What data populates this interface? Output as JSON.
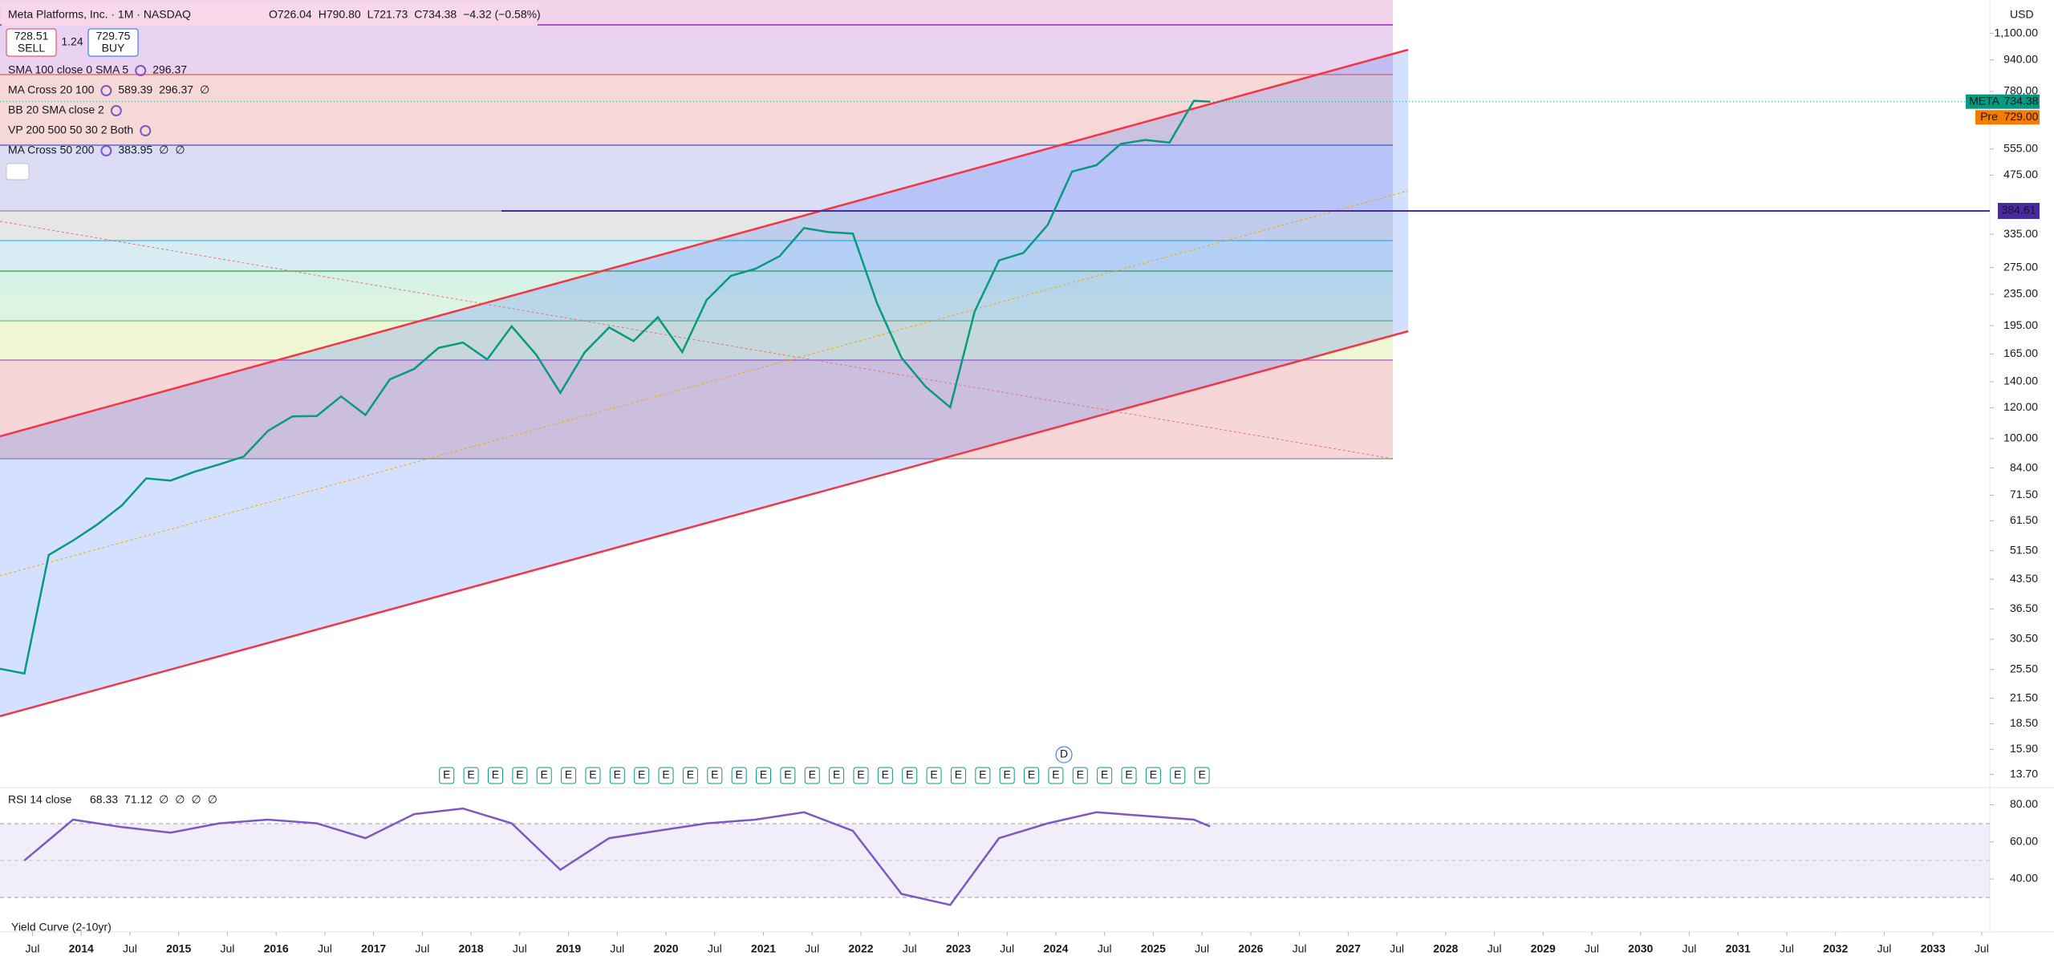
{
  "chart_data": [
    {
      "type": "line",
      "title": "Meta Platforms, Inc. · 1M · NASDAQ",
      "ohlc": [
        "O726.04",
        "H790.80",
        "L721.73",
        "C734.38",
        "−4.32 (−0.58%)"
      ],
      "sell": {
        "price": "728.51",
        "label": "SELL"
      },
      "spread": "1.24",
      "buy": {
        "price": "729.75",
        "label": "BUY"
      },
      "indicators": [
        {
          "name": "SMA 100 close 0 SMA 5",
          "values": [
            "296.37"
          ],
          "colors": [
            "#ff9800"
          ]
        },
        {
          "name": "MA Cross 20 100",
          "values": [
            "589.39",
            "296.37",
            "∅"
          ],
          "colors": [
            "#5b3fb5",
            "#ff9800",
            "#131722"
          ]
        },
        {
          "name": "BB 20 SMA close 2",
          "values": [],
          "colors": []
        },
        {
          "name": "VP 200 500 50 30 2 Both",
          "values": [],
          "colors": []
        },
        {
          "name": "MA Cross 50 200",
          "values": [
            "383.95",
            "∅",
            "∅"
          ],
          "colors": [
            "#c2185b",
            "#131722",
            "#131722"
          ]
        }
      ],
      "currency": "USD",
      "x": [
        "2013-03",
        "2013-06",
        "2013-09",
        "2013-12",
        "2014-03",
        "2014-06",
        "2014-09",
        "2014-12",
        "2015-03",
        "2015-06",
        "2015-09",
        "2015-12",
        "2016-03",
        "2016-06",
        "2016-09",
        "2016-12",
        "2017-03",
        "2017-06",
        "2017-09",
        "2017-12",
        "2018-03",
        "2018-06",
        "2018-09",
        "2018-12",
        "2019-03",
        "2019-06",
        "2019-09",
        "2019-12",
        "2020-03",
        "2020-06",
        "2020-09",
        "2020-12",
        "2021-03",
        "2021-06",
        "2021-09",
        "2021-12",
        "2022-03",
        "2022-06",
        "2022-09",
        "2022-12",
        "2023-03",
        "2023-06",
        "2023-09",
        "2023-12",
        "2024-03",
        "2024-06",
        "2024-09",
        "2024-12",
        "2025-03",
        "2025-06",
        "2025-08"
      ],
      "values": [
        25.6,
        24.9,
        50.2,
        54.7,
        60.2,
        67.3,
        79,
        78,
        82.2,
        85.8,
        89.9,
        104.7,
        114,
        114.3,
        128.3,
        115,
        142,
        151,
        171,
        176.5,
        159.8,
        194.3,
        164.5,
        131,
        166.7,
        193,
        178,
        205,
        166.8,
        227,
        262,
        273,
        294.5,
        347.7,
        339.4,
        336.4,
        222.4,
        161.3,
        135.7,
        120.3,
        212,
        287,
        300,
        354,
        485.6,
        504,
        572,
        585.5,
        576.4,
        738,
        734.38
      ],
      "color": "#089981",
      "log_scale": true,
      "grid": false,
      "xlim": [
        "2013-03",
        "2033-08"
      ],
      "xticks": [
        {
          "value": "2013-07",
          "label": "Jul"
        },
        {
          "value": "2014-01",
          "label": "2014"
        },
        {
          "value": "2014-07",
          "label": "Jul"
        },
        {
          "value": "2015-01",
          "label": "2015"
        },
        {
          "value": "2015-07",
          "label": "Jul"
        },
        {
          "value": "2016-01",
          "label": "2016"
        },
        {
          "value": "2016-07",
          "label": "Jul"
        },
        {
          "value": "2017-01",
          "label": "2017"
        },
        {
          "value": "2017-07",
          "label": "Jul"
        },
        {
          "value": "2018-01",
          "label": "2018"
        },
        {
          "value": "2018-07",
          "label": "Jul"
        },
        {
          "value": "2019-01",
          "label": "2019"
        },
        {
          "value": "2019-07",
          "label": "Jul"
        },
        {
          "value": "2020-01",
          "label": "2020"
        },
        {
          "value": "2020-07",
          "label": "Jul"
        },
        {
          "value": "2021-01",
          "label": "2021"
        },
        {
          "value": "2021-07",
          "label": "Jul"
        },
        {
          "value": "2022-01",
          "label": "2022"
        },
        {
          "value": "2022-07",
          "label": "Jul"
        },
        {
          "value": "2023-01",
          "label": "2023"
        },
        {
          "value": "2023-07",
          "label": "Jul"
        },
        {
          "value": "2024-01",
          "label": "2024"
        },
        {
          "value": "2024-07",
          "label": "Jul"
        },
        {
          "value": "2025-01",
          "label": "2025"
        },
        {
          "value": "2025-07",
          "label": "Jul"
        },
        {
          "value": "2026-01",
          "label": "2026"
        },
        {
          "value": "2026-07",
          "label": "Jul"
        },
        {
          "value": "2027-01",
          "label": "2027"
        },
        {
          "value": "2027-07",
          "label": "Jul"
        },
        {
          "value": "2028-01",
          "label": "2028"
        },
        {
          "value": "2028-07",
          "label": "Jul"
        },
        {
          "value": "2029-01",
          "label": "2029"
        },
        {
          "value": "2029-07",
          "label": "Jul"
        },
        {
          "value": "2030-01",
          "label": "2030"
        },
        {
          "value": "2030-07",
          "label": "Jul"
        },
        {
          "value": "2031-01",
          "label": "2031"
        },
        {
          "value": "2031-07",
          "label": "Jul"
        },
        {
          "value": "2032-01",
          "label": "2032"
        },
        {
          "value": "2032-07",
          "label": "Jul"
        },
        {
          "value": "2033-01",
          "label": "2033"
        },
        {
          "value": "2033-07",
          "label": "Jul"
        }
      ],
      "ylim": [
        12.8,
        1340
      ],
      "yticks": [
        {
          "value": 13.7,
          "label": "13.70"
        },
        {
          "value": 15.9,
          "label": "15.90"
        },
        {
          "value": 18.5,
          "label": "18.50"
        },
        {
          "value": 21.5,
          "label": "21.50"
        },
        {
          "value": 25.5,
          "label": "25.50"
        },
        {
          "value": 30.5,
          "label": "30.50"
        },
        {
          "value": 36.5,
          "label": "36.50"
        },
        {
          "value": 43.5,
          "label": "43.50"
        },
        {
          "value": 51.5,
          "label": "51.50"
        },
        {
          "value": 61.5,
          "label": "61.50"
        },
        {
          "value": 71.5,
          "label": "71.50"
        },
        {
          "value": 84,
          "label": "84.00"
        },
        {
          "value": 100,
          "label": "100.00"
        },
        {
          "value": 120,
          "label": "120.00"
        },
        {
          "value": 140,
          "label": "140.00"
        },
        {
          "value": 165,
          "label": "165.00"
        },
        {
          "value": 195,
          "label": "195.00"
        },
        {
          "value": 235,
          "label": "235.00"
        },
        {
          "value": 275,
          "label": "275.00"
        },
        {
          "value": 335,
          "label": "335.00"
        },
        {
          "value": 475,
          "label": "475.00"
        },
        {
          "value": 555,
          "label": "555.00"
        },
        {
          "value": 780,
          "label": "780.00"
        },
        {
          "value": 940,
          "label": "940.00"
        },
        {
          "value": 1100,
          "label": "1,100.00"
        }
      ],
      "last_price": {
        "symbol": "META",
        "value": 734.38,
        "color": "#089981"
      },
      "premarket": {
        "label": "Pre",
        "value": 729,
        "value_label": "729.00",
        "color": "#f57c00"
      },
      "hline": {
        "value": 384.61,
        "color": "#4a2a9e"
      },
      "earnings": {
        "label": "E",
        "color": "#089981",
        "x": [
          "2017-10",
          "2018-01",
          "2018-04",
          "2018-07",
          "2018-10",
          "2019-01",
          "2019-04",
          "2019-07",
          "2019-10",
          "2020-01",
          "2020-04",
          "2020-07",
          "2020-10",
          "2021-01",
          "2021-04",
          "2021-07",
          "2021-10",
          "2022-01",
          "2022-04",
          "2022-07",
          "2022-10",
          "2023-01",
          "2023-04",
          "2023-07",
          "2023-10",
          "2024-01",
          "2024-04",
          "2024-07",
          "2024-10",
          "2025-01",
          "2025-04",
          "2025-07"
        ]
      },
      "dividend": {
        "x": "2024-02",
        "label": "D",
        "color": "#2962ff"
      },
      "bottom_indicator": "Yield Curve (2-10yr)"
    },
    {
      "type": "line",
      "title": "RSI 14 close",
      "legend_values": [
        "68.33",
        "71.12",
        "∅",
        "∅",
        "∅",
        "∅"
      ],
      "legend_colors": [
        "#7e57c2",
        "#fdd835",
        "#131722",
        "#131722",
        "#131722",
        "#131722"
      ],
      "x": [
        "2013-06",
        "2013-12",
        "2014-06",
        "2014-12",
        "2015-06",
        "2015-12",
        "2016-06",
        "2016-12",
        "2017-06",
        "2017-12",
        "2018-06",
        "2018-12",
        "2019-06",
        "2019-12",
        "2020-06",
        "2020-12",
        "2021-06",
        "2021-12",
        "2022-06",
        "2022-12",
        "2023-06",
        "2023-12",
        "2024-06",
        "2024-12",
        "2025-06",
        "2025-08"
      ],
      "values": [
        50,
        72,
        68,
        65,
        70,
        72,
        70,
        62,
        75,
        78,
        70,
        45,
        62,
        66,
        70,
        72,
        76,
        66,
        32,
        26,
        62,
        70,
        76,
        74,
        72,
        68.33
      ],
      "color": "#7e57c2",
      "xlim": [
        "2013-03",
        "2033-08"
      ],
      "ylim": [
        21,
        88
      ],
      "yticks": [
        {
          "value": 40,
          "label": "40.00"
        },
        {
          "value": 60,
          "label": "60.00"
        },
        {
          "value": 80,
          "label": "80.00"
        }
      ]
    }
  ]
}
